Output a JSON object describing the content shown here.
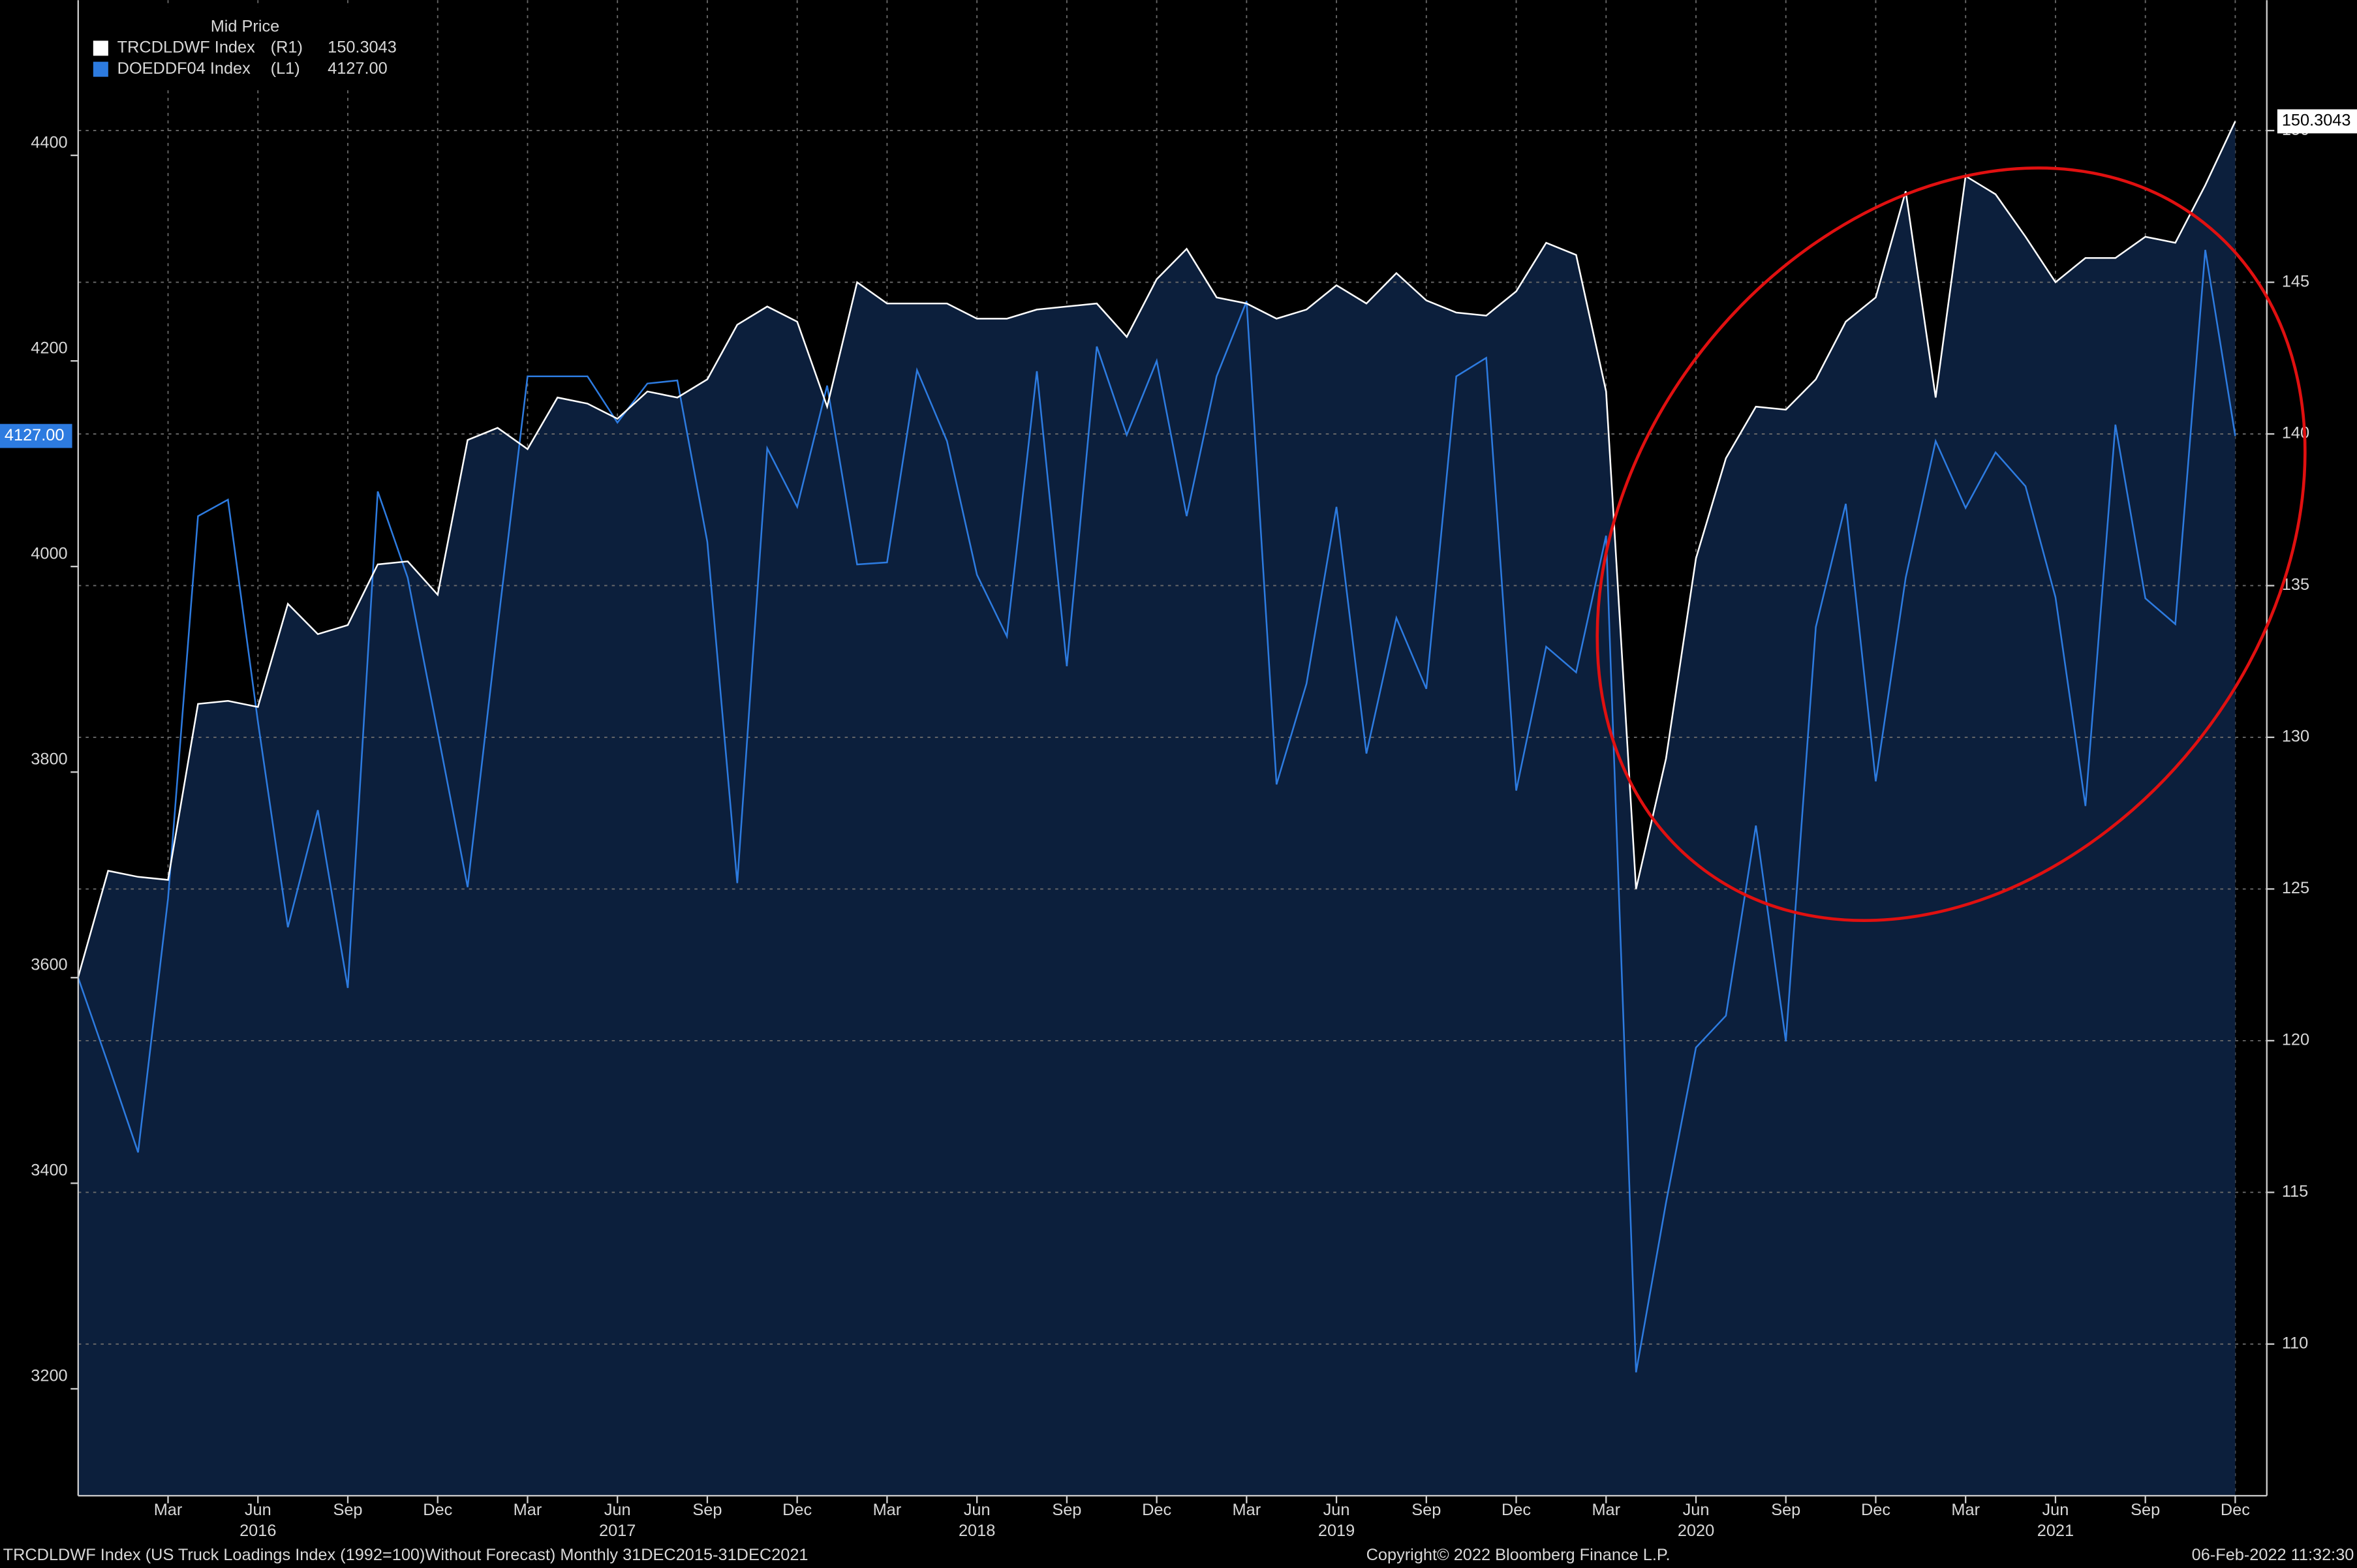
{
  "chart_data": {
    "type": "line",
    "legend_title": "Mid Price",
    "categories": [
      null,
      null,
      null,
      "Mar",
      null,
      null,
      "Jun",
      null,
      null,
      "Sep",
      null,
      null,
      "Dec",
      null,
      null,
      "Mar",
      null,
      null,
      "Jun",
      null,
      null,
      "Sep",
      null,
      null,
      "Dec",
      null,
      null,
      "Mar",
      null,
      null,
      "Jun",
      null,
      null,
      "Sep",
      null,
      null,
      "Dec",
      null,
      null,
      "Mar",
      null,
      null,
      "Jun",
      null,
      null,
      "Sep",
      null,
      null,
      "Dec",
      null,
      null,
      "Mar",
      null,
      null,
      "Jun",
      null,
      null,
      "Sep",
      null,
      null,
      "Dec",
      null,
      null,
      "Mar",
      null,
      null,
      "Jun",
      null,
      null,
      "Sep",
      null,
      null,
      "Dec"
    ],
    "year_categories": [
      null,
      null,
      null,
      null,
      null,
      null,
      "2016",
      null,
      null,
      null,
      null,
      null,
      null,
      null,
      null,
      null,
      null,
      null,
      "2017",
      null,
      null,
      null,
      null,
      null,
      null,
      null,
      null,
      null,
      null,
      null,
      "2018",
      null,
      null,
      null,
      null,
      null,
      null,
      null,
      null,
      null,
      null,
      null,
      "2019",
      null,
      null,
      null,
      null,
      null,
      null,
      null,
      null,
      null,
      null,
      null,
      "2020",
      null,
      null,
      null,
      null,
      null,
      null,
      null,
      null,
      null,
      null,
      null,
      "2021",
      null,
      null,
      null,
      null,
      null,
      null
    ],
    "series": [
      {
        "name": "TRCDLDWF Index",
        "axis_tag": "(R1)",
        "axis": "y2",
        "color": "#ffffff",
        "fill": "#0c1f3c",
        "values": [
          122.1,
          125.6,
          125.4,
          125.3,
          131.1,
          131.2,
          131.0,
          134.4,
          133.4,
          133.7,
          135.7,
          135.8,
          134.7,
          139.8,
          140.2,
          139.5,
          141.2,
          141.0,
          140.5,
          141.4,
          141.2,
          141.8,
          143.6,
          144.2,
          143.7,
          140.9,
          145.0,
          144.3,
          144.3,
          144.3,
          143.8,
          143.8,
          144.1,
          144.2,
          144.3,
          143.2,
          145.1,
          146.1,
          144.5,
          144.3,
          143.8,
          144.1,
          144.9,
          144.3,
          145.3,
          144.4,
          144.0,
          143.9,
          144.7,
          146.3,
          145.9,
          141.4,
          125.0,
          129.3,
          135.9,
          139.2,
          140.9,
          140.8,
          141.8,
          143.7,
          144.5,
          148.0,
          141.2,
          148.5,
          147.9,
          146.5,
          145.0,
          145.8,
          145.8,
          146.5,
          146.3,
          148.2,
          150.3043
        ]
      },
      {
        "name": "DOEDDF04 Index",
        "axis_tag": "(L1)",
        "axis": "y",
        "color": "#2d7be0",
        "values": [
          3600,
          3516,
          3430,
          3677,
          4049,
          4065,
          3849,
          3649,
          3763,
          3590,
          4073,
          3989,
          3839,
          3688,
          3941,
          4185,
          4185,
          4185,
          4140,
          4178,
          4181,
          4024,
          3692,
          4115,
          4058,
          4176,
          4002,
          4004,
          4191,
          4122,
          3992,
          3932,
          4190,
          3903,
          4214,
          4128,
          4200,
          4049,
          4185,
          4258,
          3788,
          3886,
          4058,
          3818,
          3950,
          3881,
          4185,
          4203,
          3782,
          3922,
          3897,
          4030,
          3216,
          3381,
          3532,
          3563,
          3748,
          3538,
          3941,
          4061,
          3791,
          3989,
          4122,
          4057,
          4111,
          4078,
          3970,
          3767,
          4138,
          3969,
          3944,
          4308,
          4127
        ],
        "value_labels": [
          null,
          null,
          null,
          null,
          null,
          null,
          null,
          null,
          null,
          null,
          null,
          null,
          null,
          null,
          null,
          null,
          null,
          null,
          null,
          null,
          null,
          null,
          null,
          null,
          null,
          null,
          null,
          null,
          null,
          null,
          null,
          null,
          null,
          null,
          null,
          null,
          null,
          null,
          null,
          null,
          null,
          null,
          null,
          null,
          null,
          null,
          null,
          null,
          null,
          null,
          null,
          null,
          null,
          null,
          null,
          null,
          null,
          null,
          null,
          null,
          null,
          null,
          null,
          null,
          null,
          null,
          null,
          null,
          null,
          null,
          null,
          null,
          "4127.00"
        ]
      }
    ],
    "ylim": [
      3096,
      4551
    ],
    "yticks": [
      3200,
      3400,
      3600,
      3800,
      4000,
      4200,
      4400
    ],
    "y2lim": [
      105,
      154.3
    ],
    "y2ticks": [
      110,
      115,
      120,
      125,
      130,
      135,
      140,
      145,
      150
    ],
    "grid": true,
    "footer_left": "TRCDLDWF Index (US Truck Loadings Index (1992=100)Without Forecast)  Monthly 31DEC2015-31DEC2021",
    "footer_center": "Copyright© 2022 Bloomberg Finance L.P.",
    "footer_right": "06-Feb-2022 11:32:30"
  }
}
